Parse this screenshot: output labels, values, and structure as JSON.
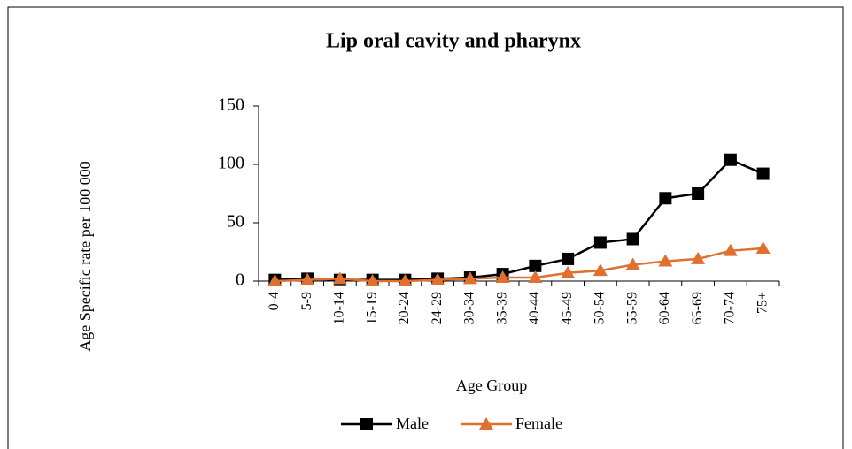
{
  "chart_data": {
    "type": "line",
    "title": "Lip oral cavity and pharynx",
    "x_label": "Age Group",
    "y_label": "Age Specific rate per 100 000",
    "categories": [
      "0-4",
      "5-9",
      "10-14",
      "15-19",
      "20-24",
      "24-29",
      "30-34",
      "35-39",
      "40-44",
      "45-49",
      "50-54",
      "55-59",
      "60-64",
      "65-69",
      "70-74",
      "75+"
    ],
    "series": [
      {
        "name": "Male",
        "color": "#000000",
        "marker": "square",
        "values": [
          1,
          2,
          1,
          1,
          1,
          2,
          3,
          6,
          13,
          19,
          33,
          36,
          71,
          75,
          104,
          92
        ]
      },
      {
        "name": "Female",
        "color": "#e07030",
        "marker": "triangle",
        "values": [
          0,
          1,
          2,
          0,
          0,
          1,
          2,
          3,
          3,
          7,
          9,
          14,
          17,
          19,
          26,
          28
        ]
      }
    ],
    "ylim": [
      0,
      150
    ],
    "yticks": [
      0,
      50,
      100,
      150
    ],
    "legend": "bottom"
  }
}
